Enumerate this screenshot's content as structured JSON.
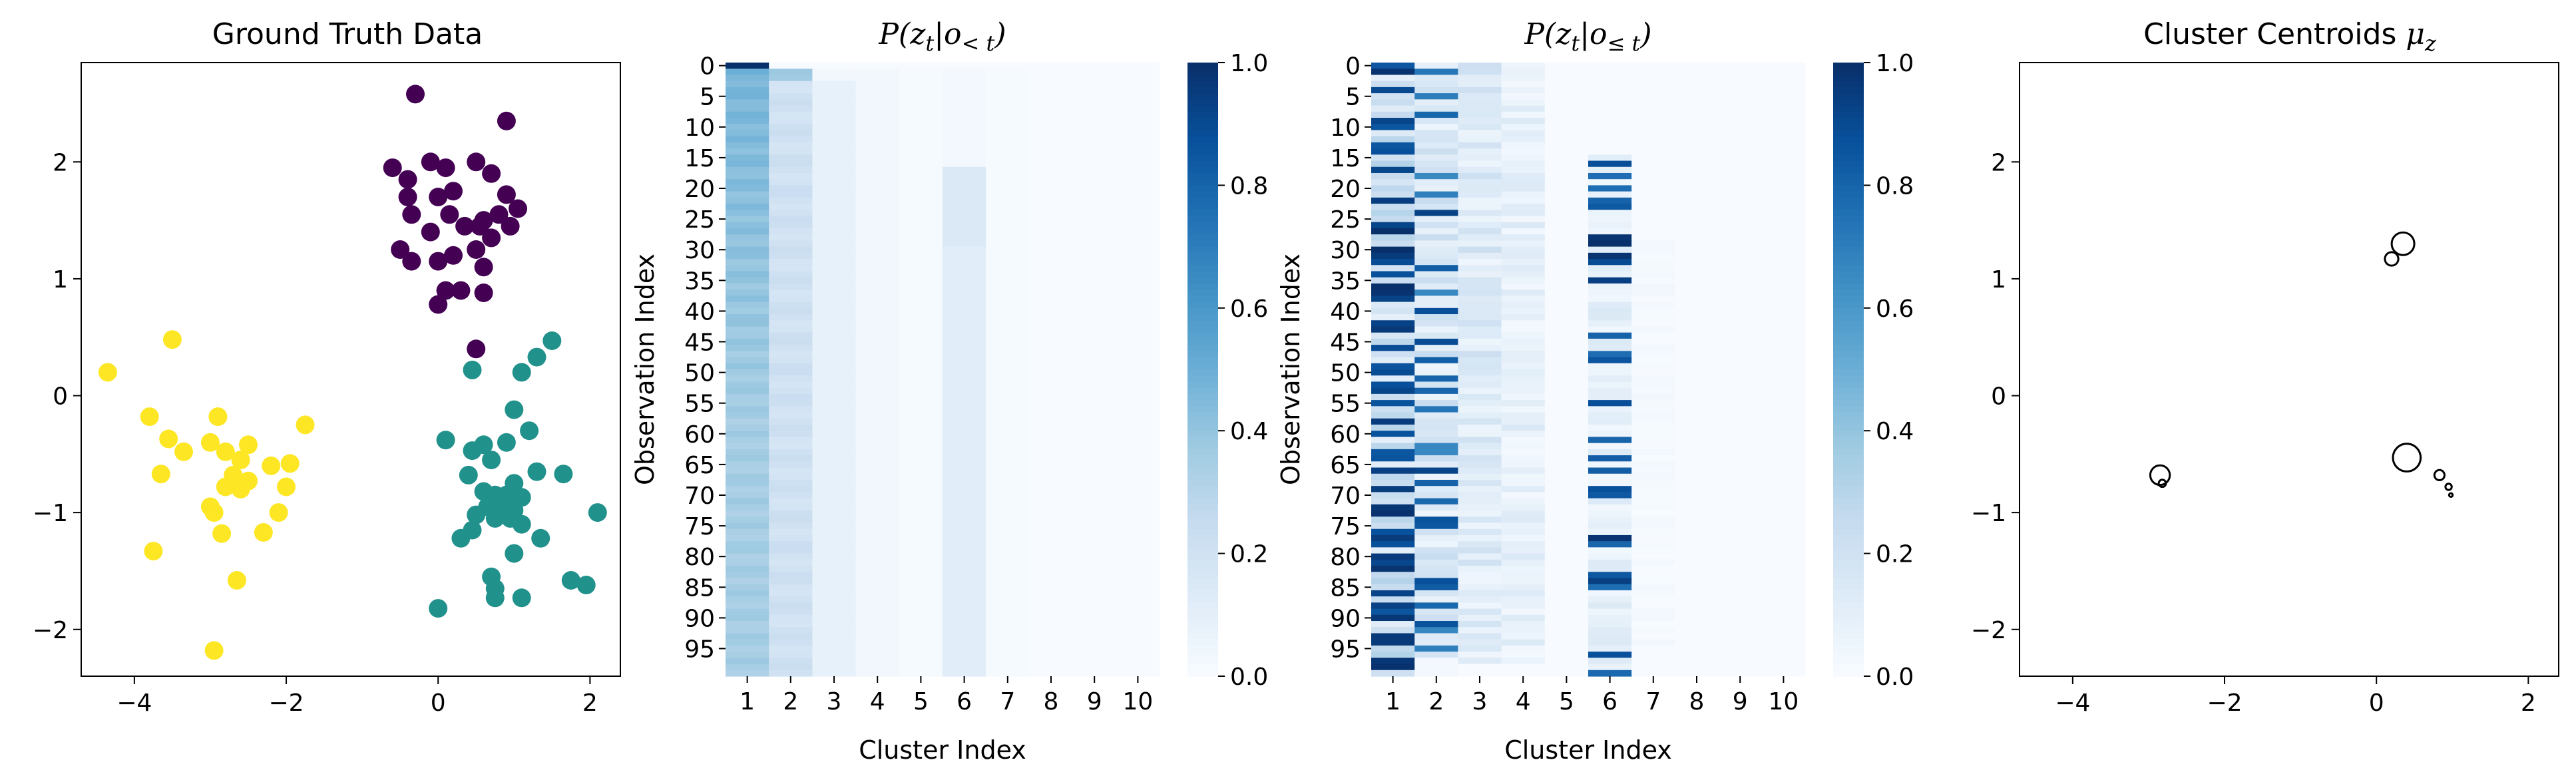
{
  "chart_data": [
    {
      "type": "scatter",
      "title": "Ground Truth Data",
      "xlim": [
        -4.7,
        2.4
      ],
      "ylim": [
        -2.4,
        2.85
      ],
      "xticks": [
        -4,
        -2,
        0,
        2
      ],
      "yticks": [
        -2,
        -1,
        0,
        1,
        2
      ],
      "xtick_labels": [
        "−4",
        "−2",
        "0",
        "2"
      ],
      "ytick_labels": [
        "−2",
        "−1",
        "0",
        "1",
        "2"
      ],
      "grid": false,
      "series": [
        {
          "color": "#440154",
          "points": [
            [
              -0.3,
              2.58
            ],
            [
              0.9,
              2.35
            ],
            [
              -0.6,
              1.95
            ],
            [
              -0.1,
              2.0
            ],
            [
              0.1,
              1.95
            ],
            [
              0.5,
              2.0
            ],
            [
              0.7,
              1.9
            ],
            [
              -0.4,
              1.85
            ],
            [
              0.0,
              1.7
            ],
            [
              0.2,
              1.75
            ],
            [
              -0.4,
              1.7
            ],
            [
              0.9,
              1.72
            ],
            [
              1.05,
              1.6
            ],
            [
              0.6,
              1.5
            ],
            [
              0.8,
              1.55
            ],
            [
              -0.35,
              1.55
            ],
            [
              0.15,
              1.55
            ],
            [
              0.35,
              1.45
            ],
            [
              0.55,
              1.45
            ],
            [
              0.95,
              1.45
            ],
            [
              0.7,
              1.35
            ],
            [
              -0.1,
              1.4
            ],
            [
              0.5,
              1.25
            ],
            [
              0.2,
              1.2
            ],
            [
              -0.5,
              1.25
            ],
            [
              0.0,
              1.15
            ],
            [
              0.6,
              1.1
            ],
            [
              -0.35,
              1.15
            ],
            [
              0.1,
              0.9
            ],
            [
              0.3,
              0.9
            ],
            [
              0.6,
              0.88
            ],
            [
              0.0,
              0.78
            ],
            [
              0.5,
              0.4
            ]
          ]
        },
        {
          "color": "#21918c",
          "points": [
            [
              1.5,
              0.47
            ],
            [
              1.3,
              0.33
            ],
            [
              1.1,
              0.2
            ],
            [
              0.45,
              0.22
            ],
            [
              1.0,
              -0.12
            ],
            [
              1.2,
              -0.3
            ],
            [
              0.1,
              -0.38
            ],
            [
              0.6,
              -0.42
            ],
            [
              0.9,
              -0.4
            ],
            [
              0.45,
              -0.47
            ],
            [
              0.7,
              -0.55
            ],
            [
              1.3,
              -0.65
            ],
            [
              1.65,
              -0.67
            ],
            [
              0.4,
              -0.68
            ],
            [
              1.0,
              -0.75
            ],
            [
              0.6,
              -0.82
            ],
            [
              0.75,
              -0.85
            ],
            [
              0.9,
              -0.85
            ],
            [
              1.1,
              -0.87
            ],
            [
              0.65,
              -0.95
            ],
            [
              0.85,
              -0.95
            ],
            [
              1.0,
              -0.98
            ],
            [
              0.5,
              -1.02
            ],
            [
              0.75,
              -1.05
            ],
            [
              0.95,
              -1.05
            ],
            [
              2.1,
              -1.0
            ],
            [
              1.1,
              -1.1
            ],
            [
              0.45,
              -1.15
            ],
            [
              0.3,
              -1.22
            ],
            [
              1.35,
              -1.22
            ],
            [
              1.0,
              -1.35
            ],
            [
              0.7,
              -1.55
            ],
            [
              1.75,
              -1.58
            ],
            [
              1.95,
              -1.62
            ],
            [
              0.75,
              -1.65
            ],
            [
              0.75,
              -1.73
            ],
            [
              1.1,
              -1.73
            ],
            [
              0.0,
              -1.82
            ]
          ]
        },
        {
          "color": "#fde725",
          "points": [
            [
              -3.5,
              0.48
            ],
            [
              -4.35,
              0.2
            ],
            [
              -3.8,
              -0.18
            ],
            [
              -2.9,
              -0.18
            ],
            [
              -3.55,
              -0.37
            ],
            [
              -3.0,
              -0.4
            ],
            [
              -2.5,
              -0.42
            ],
            [
              -1.75,
              -0.25
            ],
            [
              -3.35,
              -0.48
            ],
            [
              -2.8,
              -0.48
            ],
            [
              -2.6,
              -0.55
            ],
            [
              -2.2,
              -0.6
            ],
            [
              -1.95,
              -0.58
            ],
            [
              -2.7,
              -0.68
            ],
            [
              -3.65,
              -0.67
            ],
            [
              -2.5,
              -0.73
            ],
            [
              -2.8,
              -0.78
            ],
            [
              -2.6,
              -0.8
            ],
            [
              -2.0,
              -0.78
            ],
            [
              -3.0,
              -0.95
            ],
            [
              -2.1,
              -1.0
            ],
            [
              -2.95,
              -1.0
            ],
            [
              -2.85,
              -1.18
            ],
            [
              -2.3,
              -1.17
            ],
            [
              -3.75,
              -1.33
            ],
            [
              -2.65,
              -1.58
            ],
            [
              -2.95,
              -2.18
            ]
          ]
        }
      ]
    },
    {
      "type": "heatmap",
      "title_parts": [
        "P(z",
        "t",
        "|o",
        "< t",
        ")"
      ],
      "xlabel": "Cluster Index",
      "ylabel": "Observation Index",
      "x_categories": [
        "1",
        "2",
        "3",
        "4",
        "5",
        "6",
        "7",
        "8",
        "9",
        "10"
      ],
      "y_tick_labels": [
        "0",
        "5",
        "10",
        "15",
        "20",
        "25",
        "30",
        "35",
        "40",
        "45",
        "50",
        "55",
        "60",
        "65",
        "70",
        "75",
        "80",
        "85",
        "90",
        "95"
      ],
      "n_rows": 100,
      "colorbar_ticks": [
        "0.0",
        "0.2",
        "0.4",
        "0.6",
        "0.8",
        "1.0"
      ],
      "vmin": 0,
      "vmax": 1,
      "colormap": "Blues",
      "approx_column_values": [
        0.45,
        0.2,
        0.07,
        0.03,
        0.01,
        0.1,
        0.01,
        0.0,
        0.0,
        0.0
      ],
      "column_6_starts_at_row": 17
    },
    {
      "type": "heatmap",
      "title_parts": [
        "P(z",
        "t",
        "|o",
        "≤ t",
        ")"
      ],
      "xlabel": "Cluster Index",
      "ylabel": "Observation Index",
      "x_categories": [
        "1",
        "2",
        "3",
        "4",
        "5",
        "6",
        "7",
        "8",
        "9",
        "10"
      ],
      "y_tick_labels": [
        "0",
        "5",
        "10",
        "15",
        "20",
        "25",
        "30",
        "35",
        "40",
        "45",
        "50",
        "55",
        "60",
        "65",
        "70",
        "75",
        "80",
        "85",
        "90",
        "95"
      ],
      "n_rows": 100,
      "colorbar_ticks": [
        "0.0",
        "0.2",
        "0.4",
        "0.6",
        "0.8",
        "1.0"
      ],
      "vmin": 0,
      "vmax": 1,
      "colormap": "Blues",
      "rows_high_col1": [
        0,
        1,
        4,
        9,
        10,
        13,
        14,
        17,
        22,
        26,
        27,
        30,
        31,
        32,
        34,
        36,
        37,
        38,
        42,
        43,
        46,
        49,
        50,
        52,
        53,
        55,
        58,
        60,
        63,
        64,
        66,
        69,
        72,
        73,
        76,
        77,
        78,
        80,
        81,
        82,
        86,
        88,
        89,
        90,
        93,
        94,
        97,
        98
      ],
      "rows_high_col2": [
        1,
        5,
        8,
        18,
        21,
        24,
        33,
        37,
        40,
        45,
        48,
        51,
        53,
        56,
        62,
        63,
        66,
        68,
        71,
        74,
        75,
        84,
        85,
        88,
        91,
        92,
        95
      ],
      "rows_high_col6": [
        16,
        18,
        20,
        22,
        23,
        28,
        29,
        31,
        32,
        35,
        44,
        47,
        48,
        55,
        61,
        64,
        66,
        69,
        70,
        77,
        78,
        83,
        84,
        85,
        96,
        99
      ]
    },
    {
      "type": "scatter",
      "title_parts": [
        "Cluster Centroids ",
        "μ",
        "z"
      ],
      "xlim": [
        -4.7,
        2.4
      ],
      "ylim": [
        -2.4,
        2.85
      ],
      "xticks": [
        -4,
        -2,
        0,
        2
      ],
      "yticks": [
        -2,
        -1,
        0,
        1,
        2
      ],
      "xtick_labels": [
        "−4",
        "−2",
        "0",
        "2"
      ],
      "ytick_labels": [
        "−2",
        "−1",
        "0",
        "1",
        "2"
      ],
      "marker": "open circle, size ∝ cluster weight",
      "points": [
        {
          "x": 0.35,
          "y": 1.3,
          "weight": 0.2
        },
        {
          "x": 0.2,
          "y": 1.17,
          "weight": 0.07
        },
        {
          "x": -2.85,
          "y": -0.68,
          "weight": 0.15
        },
        {
          "x": -2.82,
          "y": -0.75,
          "weight": 0.02
        },
        {
          "x": 0.4,
          "y": -0.53,
          "weight": 0.3
        },
        {
          "x": 0.83,
          "y": -0.68,
          "weight": 0.04
        },
        {
          "x": 0.95,
          "y": -0.78,
          "weight": 0.015
        },
        {
          "x": 0.98,
          "y": -0.85,
          "weight": 0.005
        }
      ]
    }
  ]
}
